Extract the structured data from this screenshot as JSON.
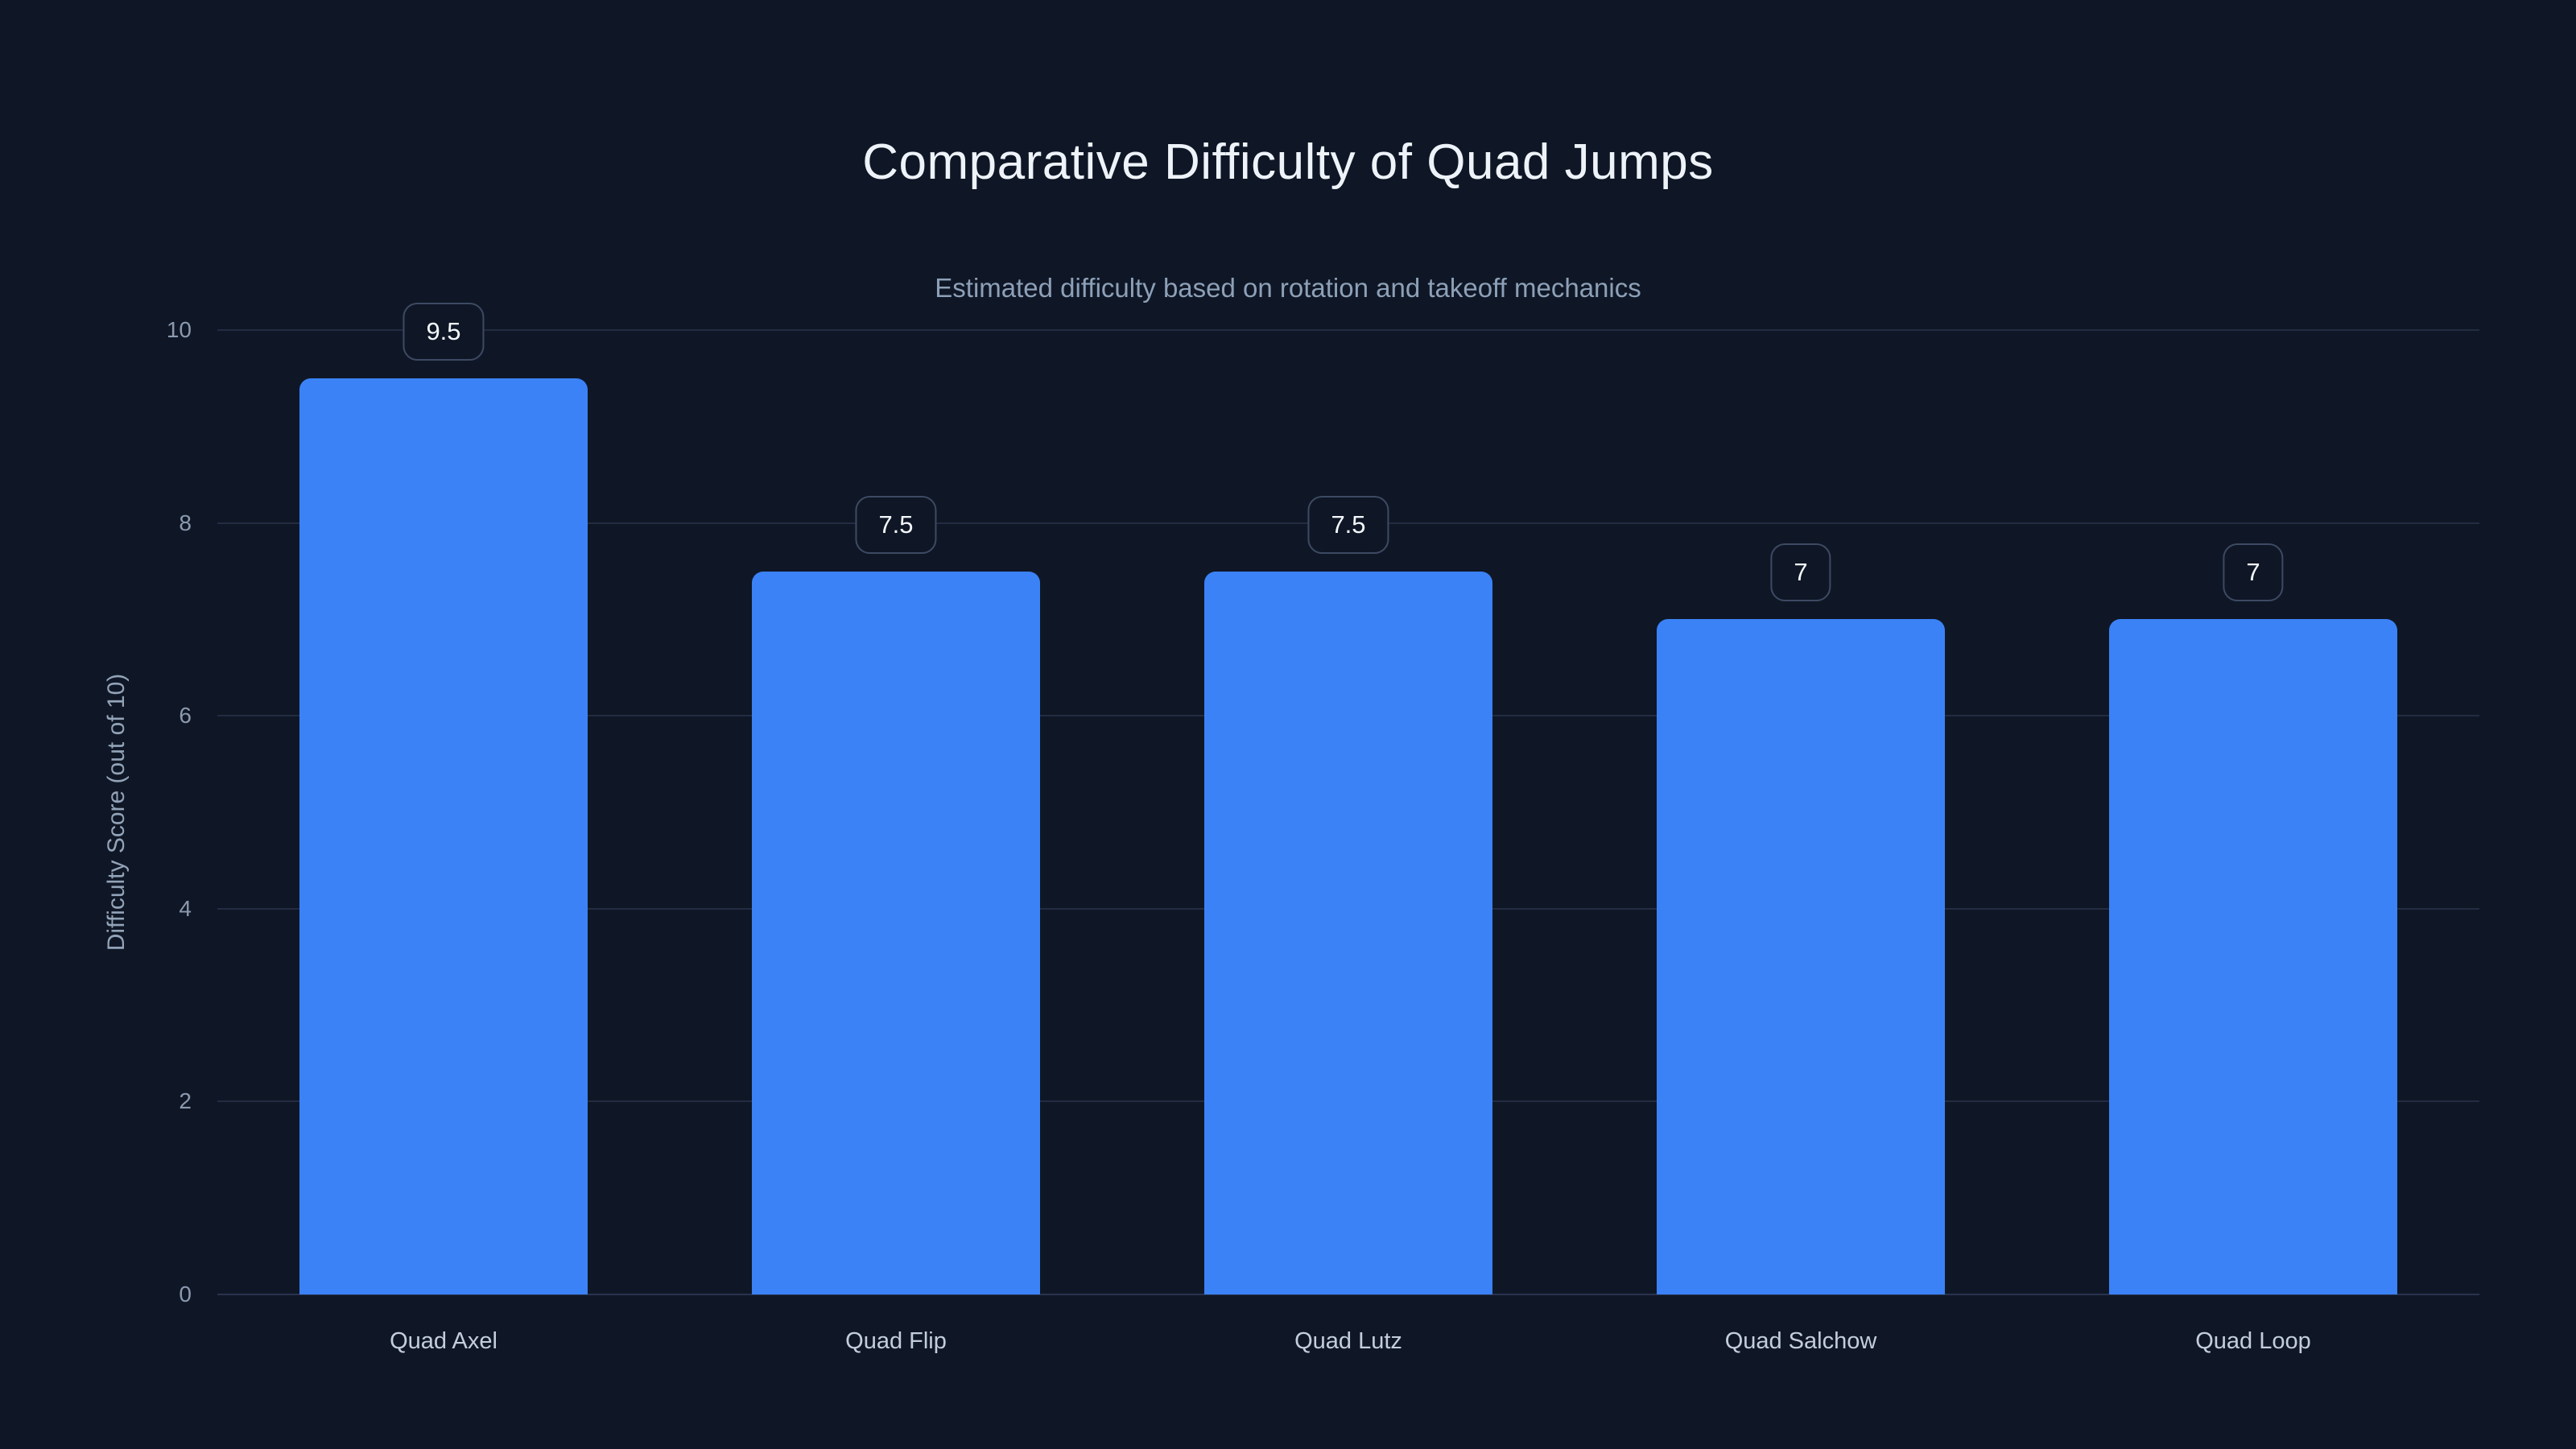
{
  "colors": {
    "background": "#0f1726",
    "bar": "#3b82f6",
    "gridline": "#222c42",
    "title_text": "#eef3f9",
    "subtitle_text": "#8da0b7",
    "axis_text": "#8b99ae",
    "category_text": "#c3cedd",
    "badge_border": "#3d4a63",
    "badge_text": "#f4f8fd"
  },
  "chart_data": {
    "type": "bar",
    "title": "Comparative Difficulty of Quad Jumps",
    "subtitle": "Estimated difficulty based on rotation and takeoff mechanics",
    "categories": [
      "Quad Axel",
      "Quad Flip",
      "Quad Lutz",
      "Quad Salchow",
      "Quad Loop"
    ],
    "values": [
      9.5,
      7.5,
      7.5,
      7,
      7
    ],
    "value_labels": [
      "9.5",
      "7.5",
      "7.5",
      "7",
      "7"
    ],
    "xlabel": "",
    "ylabel": "Difficulty Score (out of 10)",
    "ylim": [
      0,
      10
    ],
    "yticks": [
      0,
      2,
      4,
      6,
      8,
      10
    ],
    "grid": "horizontal",
    "legend": "none",
    "bar_color": "#3b82f6"
  }
}
